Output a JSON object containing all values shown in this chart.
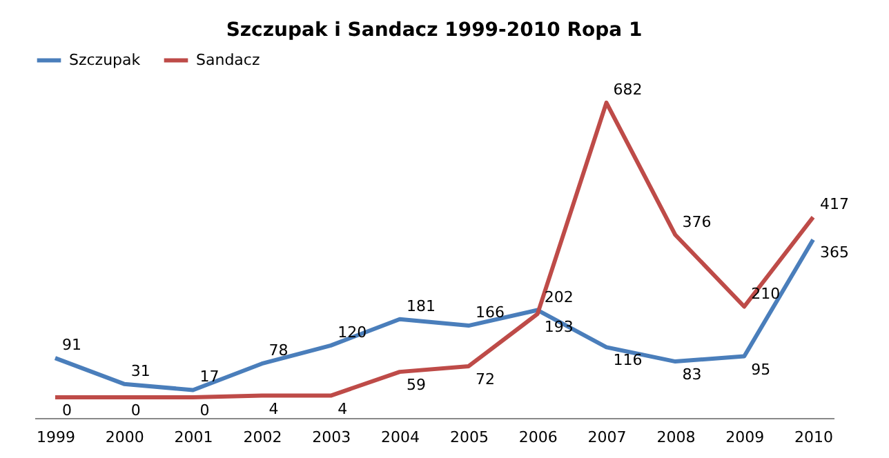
{
  "chart_data": {
    "type": "line",
    "title": "Szczupak i Sandacz 1999-2010 Ropa 1",
    "categories": [
      "1999",
      "2000",
      "2001",
      "2002",
      "2003",
      "2004",
      "2005",
      "2006",
      "2007",
      "2008",
      "2009",
      "2010"
    ],
    "series": [
      {
        "name": "Szczupak",
        "color": "#4a7ebb",
        "values": [
          91,
          31,
          17,
          78,
          120,
          181,
          166,
          202,
          116,
          83,
          95,
          365
        ]
      },
      {
        "name": "Sandacz",
        "color": "#be4b48",
        "values": [
          0,
          0,
          0,
          4,
          4,
          59,
          72,
          193,
          682,
          376,
          210,
          417
        ]
      }
    ],
    "data_labels": true,
    "legend": "top",
    "grid": false,
    "marker": "none",
    "line_style": "solid"
  }
}
